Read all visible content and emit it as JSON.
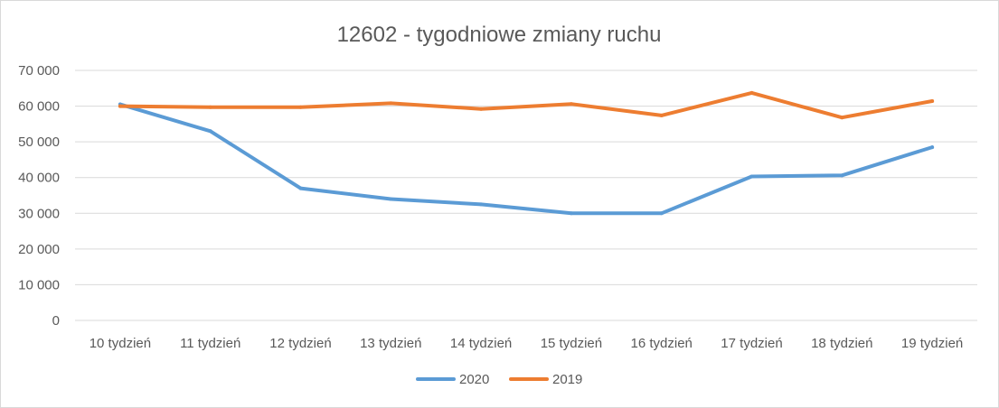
{
  "chart_data": {
    "type": "line",
    "title": "12602 - tygodniowe zmiany ruchu",
    "categories": [
      "10 tydzień",
      "11 tydzień",
      "12 tydzień",
      "13 tydzień",
      "14 tydzień",
      "15 tydzień",
      "16 tydzień",
      "17 tydzień",
      "18 tydzień",
      "19 tydzień"
    ],
    "y_ticks": [
      "0",
      "10 000",
      "20 000",
      "30 000",
      "40 000",
      "50 000",
      "60 000",
      "70 000"
    ],
    "y_tick_values": [
      0,
      10000,
      20000,
      30000,
      40000,
      50000,
      60000,
      70000
    ],
    "ylim": [
      0,
      70000
    ],
    "grid": true,
    "legend_position": "bottom",
    "series": [
      {
        "name": "2020",
        "color": "#5b9bd5",
        "values": [
          60500,
          53000,
          37000,
          34000,
          32500,
          30000,
          30000,
          40300,
          40600,
          48500
        ]
      },
      {
        "name": "2019",
        "color": "#ed7d31",
        "values": [
          60000,
          59700,
          59700,
          60800,
          59200,
          60600,
          57400,
          63700,
          56800,
          61400
        ]
      }
    ]
  }
}
